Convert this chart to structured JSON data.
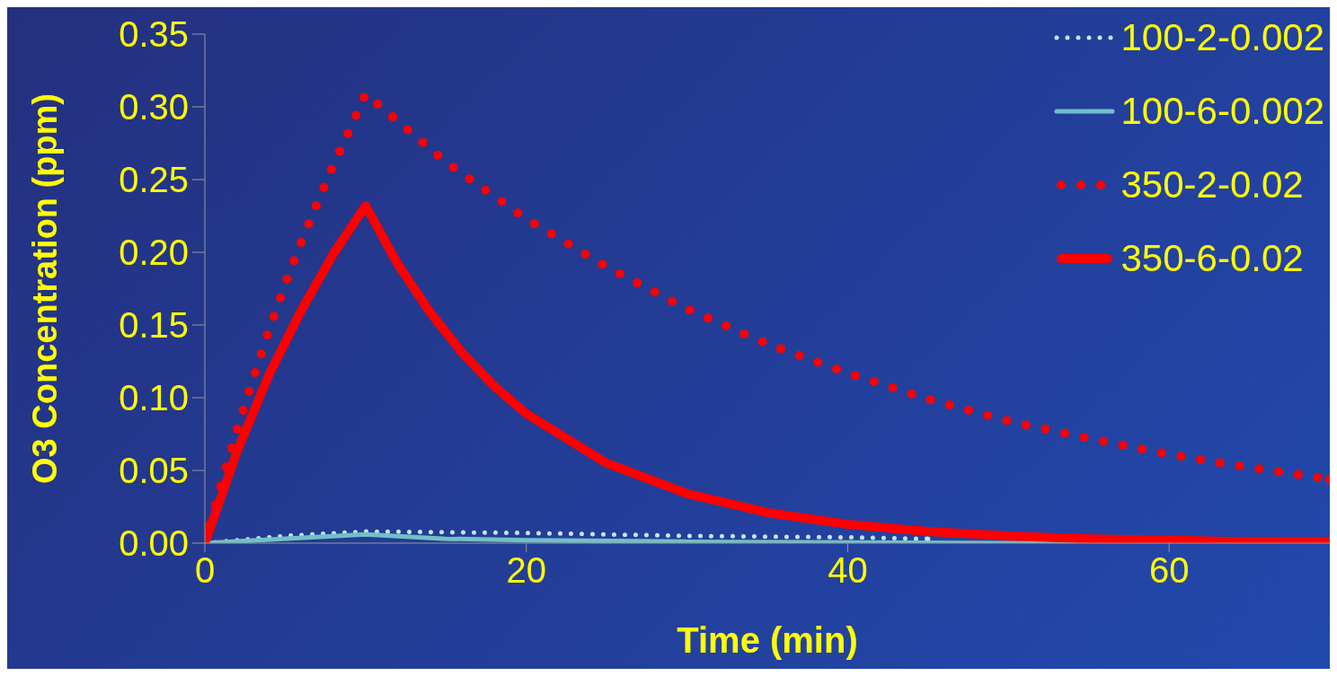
{
  "chart_data": {
    "type": "line",
    "xlabel": "Time (min)",
    "ylabel": "O3 Concentration (ppm)",
    "xlim": [
      0,
      70
    ],
    "xticks": [
      0,
      20,
      40,
      60
    ],
    "ylim": [
      0,
      0.35
    ],
    "yticks": [
      {
        "value": 0,
        "label": "0.00"
      },
      0.05,
      {
        "value": 0.1,
        "label": "0.10"
      },
      0.15,
      {
        "value": 0.2,
        "label": "0.20"
      },
      0.25,
      {
        "value": 0.3,
        "label": "0.30"
      },
      0.35
    ],
    "grid": false,
    "legend": "right",
    "marker": "none",
    "series": [
      {
        "name": "100-2-0.002",
        "color": "#c8e4f0",
        "line_style": "dotted",
        "x": [
          0,
          5,
          10,
          20,
          30,
          40,
          45
        ],
        "values": [
          0,
          0.005,
          0.008,
          0.007,
          0.005,
          0.004,
          0.003
        ]
      },
      {
        "name": "100-6-0.002",
        "color": "#70c0c8",
        "line_style": "solid",
        "x": [
          0,
          10,
          15,
          20,
          30,
          50,
          70
        ],
        "values": [
          0,
          0.006,
          0.003,
          0.002,
          0.001,
          0,
          0
        ]
      },
      {
        "name": "350-2-0.02",
        "color": "#ff0000",
        "line_style": "dotted",
        "x": [
          0,
          1,
          2,
          3,
          4,
          5,
          6,
          7,
          8,
          9,
          10,
          15,
          20,
          25,
          30,
          35,
          40,
          45,
          50,
          55,
          60,
          65,
          70
        ],
        "values": [
          0,
          0.04,
          0.078,
          0.113,
          0.147,
          0.178,
          0.207,
          0.234,
          0.26,
          0.284,
          0.309,
          0.262,
          0.223,
          0.19,
          0.161,
          0.137,
          0.117,
          0.099,
          0.084,
          0.072,
          0.061,
          0.052,
          0.044
        ]
      },
      {
        "name": "350-6-0.02",
        "color": "#ff0000",
        "line_style": "solid",
        "x": [
          0,
          2,
          4,
          6,
          8,
          10,
          12,
          14,
          16,
          18,
          20,
          25,
          30,
          35,
          40,
          45,
          50,
          55,
          60,
          65,
          70
        ],
        "values": [
          0,
          0.063,
          0.116,
          0.16,
          0.199,
          0.232,
          0.192,
          0.159,
          0.131,
          0.108,
          0.089,
          0.055,
          0.034,
          0.021,
          0.013,
          0.008,
          0.005,
          0.003,
          0.002,
          0.001,
          0.001
        ]
      }
    ]
  }
}
